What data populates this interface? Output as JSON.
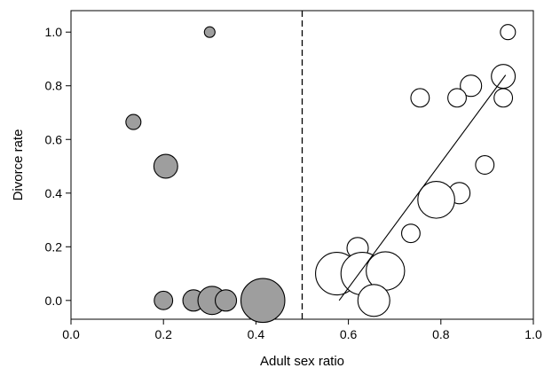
{
  "chart_data": {
    "type": "scatter",
    "title": "",
    "xlabel": "Adult sex ratio",
    "ylabel": "Divorce rate",
    "xlim": [
      0.0,
      1.0
    ],
    "ylim": [
      -0.07,
      1.08
    ],
    "xticks": [
      "0.0",
      "0.2",
      "0.4",
      "0.6",
      "0.8",
      "1.0"
    ],
    "yticks": [
      "0.0",
      "0.2",
      "0.4",
      "0.6",
      "0.8",
      "1.0"
    ],
    "grid": false,
    "reference_line_x": 0.5,
    "series": [
      {
        "fill": "#9e9e9e",
        "points": [
          {
            "x": 0.3,
            "y": 1.0,
            "size": 1
          },
          {
            "x": 0.135,
            "y": 0.665,
            "size": 2
          },
          {
            "x": 0.205,
            "y": 0.5,
            "size": 5
          },
          {
            "x": 0.2,
            "y": 0.0,
            "size": 3
          },
          {
            "x": 0.265,
            "y": 0.0,
            "size": 4
          },
          {
            "x": 0.305,
            "y": 0.0,
            "size": 7
          },
          {
            "x": 0.335,
            "y": 0.0,
            "size": 4
          },
          {
            "x": 0.415,
            "y": 0.0,
            "size": 17
          }
        ]
      },
      {
        "fill": "#ffffff",
        "points": [
          {
            "x": 0.945,
            "y": 1.0,
            "size": 2
          },
          {
            "x": 0.935,
            "y": 0.835,
            "size": 5
          },
          {
            "x": 0.865,
            "y": 0.8,
            "size": 4
          },
          {
            "x": 0.755,
            "y": 0.755,
            "size": 3
          },
          {
            "x": 0.835,
            "y": 0.755,
            "size": 3
          },
          {
            "x": 0.935,
            "y": 0.755,
            "size": 3
          },
          {
            "x": 0.895,
            "y": 0.505,
            "size": 3
          },
          {
            "x": 0.84,
            "y": 0.4,
            "size": 4
          },
          {
            "x": 0.79,
            "y": 0.375,
            "size": 12
          },
          {
            "x": 0.735,
            "y": 0.25,
            "size": 3
          },
          {
            "x": 0.62,
            "y": 0.195,
            "size": 4
          },
          {
            "x": 0.575,
            "y": 0.1,
            "size": 16
          },
          {
            "x": 0.63,
            "y": 0.1,
            "size": 16
          },
          {
            "x": 0.68,
            "y": 0.11,
            "size": 13
          },
          {
            "x": 0.655,
            "y": 0.0,
            "size": 9
          }
        ]
      }
    ],
    "trend_line": {
      "x": [
        0.58,
        0.94
      ],
      "y": [
        0.0,
        0.84
      ]
    }
  }
}
